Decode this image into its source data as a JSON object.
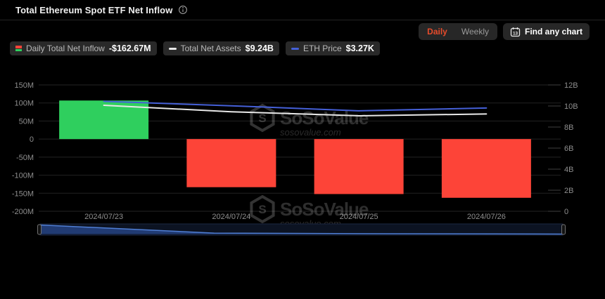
{
  "header": {
    "title": "Total Ethereum Spot ETF Net Inflow"
  },
  "controls": {
    "tabs": [
      "Daily",
      "Weekly"
    ],
    "selected_tab": "Daily",
    "find_chart_label": "Find any chart",
    "calendar_icon_day": "13"
  },
  "legend": [
    {
      "label": "Daily Total Net Inflow",
      "value": "-$162.67M",
      "marker": "bar-red-green"
    },
    {
      "label": "Total Net Assets",
      "value": "$9.24B",
      "marker": "dash",
      "color": "#e8e8e8"
    },
    {
      "label": "ETH Price",
      "value": "$3.27K",
      "marker": "dash",
      "color": "#4560d8"
    }
  ],
  "watermark": {
    "brand": "SoSoValue",
    "domain": "sosovalue.com"
  },
  "chart_data": {
    "type": "combo-bar-line",
    "categories": [
      "2024/07/23",
      "2024/07/24",
      "2024/07/25",
      "2024/07/26"
    ],
    "series": [
      {
        "name": "Daily Total Net Inflow",
        "type": "bar",
        "axis": "left",
        "unit": "USD millions",
        "values": [
          106.78,
          -133.3,
          -152.3,
          -162.67
        ]
      },
      {
        "name": "Total Net Assets",
        "type": "line",
        "axis": "right",
        "unit": "USD billions",
        "values": [
          10.07,
          9.45,
          9.07,
          9.24
        ]
      },
      {
        "name": "ETH Price",
        "type": "line",
        "axis": "hidden",
        "unit": "USD thousands",
        "values": [
          3.48,
          3.34,
          3.18,
          3.27
        ]
      }
    ],
    "left_axis": {
      "min": -200,
      "max": 150,
      "tick_values": [
        150,
        100,
        50,
        0,
        -50,
        -100,
        -150,
        -200
      ],
      "tick_labels": [
        "150M",
        "100M",
        "50M",
        "0",
        "-50M",
        "-100M",
        "-150M",
        "-200M"
      ]
    },
    "right_axis": {
      "min": 0,
      "max": 12,
      "tick_values": [
        12,
        10,
        8,
        6,
        4,
        2,
        0
      ],
      "tick_labels": [
        "12B",
        "10B",
        "8B",
        "6B",
        "4B",
        "2B",
        "0"
      ]
    },
    "price_axis": {
      "min": 0,
      "max": 4,
      "hidden": true
    },
    "grid": true,
    "legend_position": "top-left",
    "has_datazoom_slider": true
  },
  "colors": {
    "positive": "#2fcf5e",
    "negative": "#fd4438",
    "assets_line": "#e8e8e8",
    "price_line": "#4560d8",
    "axis_text": "#8e8e8e",
    "grid": "#232323",
    "right_tick": "#3f3f3f",
    "selected_tab_text": "#e64b2b",
    "pill_bg": "#292929",
    "background": "#000000",
    "watermark": "#ffffff",
    "slider_fill": "#24407c",
    "slider_line": "#4f7ed4",
    "slider_track": "#0c1322"
  }
}
